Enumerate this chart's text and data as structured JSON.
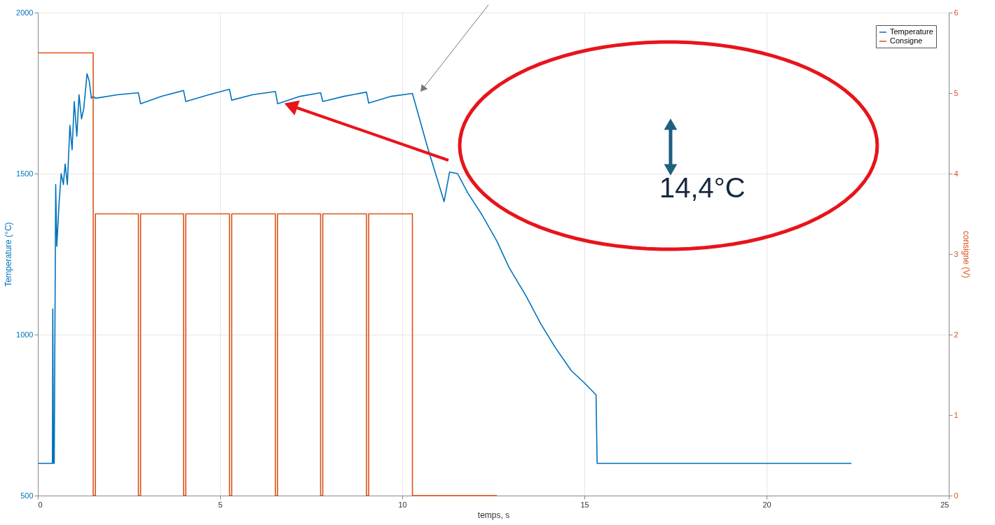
{
  "chart_data": {
    "type": "line",
    "xlabel": "temps, s",
    "ylabel": "Temperature (°C)",
    "y2label": "consigne (V)",
    "xlim": [
      0,
      25
    ],
    "xticks": [
      0,
      5,
      10,
      15,
      20,
      25
    ],
    "ylim": [
      500,
      2000
    ],
    "yticks": [
      500,
      1000,
      1500,
      2000
    ],
    "y2lim": [
      0,
      6
    ],
    "y2ticks": [
      0,
      1,
      2,
      3,
      4,
      5,
      6
    ],
    "grid": true,
    "legend": "top right",
    "marker": "none",
    "line_style": "solid",
    "annotations": [
      "14,4°C"
    ],
    "series": [
      {
        "name": "Temperature",
        "color": "#0072bd",
        "x": [
          0,
          0.4,
          0.41,
          0.43,
          0.45,
          0.49,
          0.52,
          0.58,
          0.64,
          0.7,
          0.75,
          0.81,
          0.88,
          0.94,
          1.0,
          1.07,
          1.13,
          1.2,
          1.26,
          1.35,
          1.41,
          1.47,
          1.52,
          1.58,
          2.2,
          2.76,
          2.82,
          3.4,
          4.0,
          4.06,
          4.7,
          5.26,
          5.32,
          5.9,
          6.52,
          6.58,
          7.2,
          7.76,
          7.82,
          8.4,
          9.02,
          9.08,
          9.7,
          10.28,
          10.7,
          11.15,
          11.3,
          11.52,
          11.8,
          12.2,
          12.6,
          12.93,
          13.4,
          13.8,
          14.2,
          14.64,
          15.0,
          15.32,
          15.35,
          22.33
        ],
        "values": [
          600,
          600,
          1080,
          600,
          600,
          1466,
          1274,
          1402,
          1500,
          1466,
          1530,
          1466,
          1650,
          1574,
          1724,
          1616,
          1745,
          1670,
          1702,
          1810,
          1788,
          1734,
          1740,
          1734,
          1745,
          1751,
          1717,
          1740,
          1758,
          1724,
          1745,
          1762,
          1728,
          1745,
          1755,
          1717,
          1740,
          1751,
          1724,
          1740,
          1753,
          1719,
          1740,
          1749,
          1580,
          1413,
          1505,
          1500,
          1440,
          1370,
          1290,
          1209,
          1120,
          1034,
          960,
          888,
          850,
          813,
          600,
          600
        ]
      },
      {
        "name": "Consigne",
        "color": "#d95319",
        "axis": "y2",
        "x": [
          0,
          1.52,
          1.52,
          1.58,
          1.58,
          2.76,
          2.76,
          2.82,
          2.82,
          4.0,
          4.0,
          4.06,
          4.06,
          5.26,
          5.26,
          5.32,
          5.32,
          6.52,
          6.52,
          6.58,
          6.58,
          7.76,
          7.76,
          7.82,
          7.82,
          9.02,
          9.02,
          9.08,
          9.08,
          10.28,
          10.28,
          12.6
        ],
        "values": [
          5.5,
          5.5,
          0,
          0,
          3.5,
          3.5,
          0,
          0,
          3.5,
          3.5,
          0,
          0,
          3.5,
          3.5,
          0,
          0,
          3.5,
          3.5,
          0,
          0,
          3.5,
          3.5,
          0,
          0,
          3.5,
          3.5,
          0,
          0,
          3.5,
          3.5,
          0,
          0
        ]
      }
    ]
  }
}
